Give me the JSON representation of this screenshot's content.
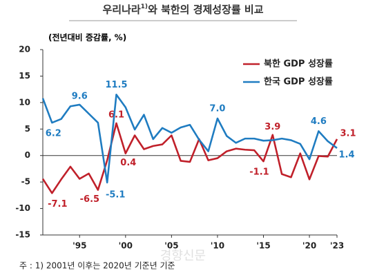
{
  "chart_data": {
    "type": "line",
    "title": [
      "우리나라",
      "1)",
      "와 북한의 경제성장률 비교"
    ],
    "y_label": "(전년대비 증감률, %)",
    "footnote": "주 : 1) 2001년 이후는 2020년 기준년 기준",
    "watermark": "경향신문",
    "legend": "upper right",
    "x": [
      1991,
      1992,
      1993,
      1994,
      1995,
      1996,
      1997,
      1998,
      1999,
      2000,
      2001,
      2002,
      2003,
      2004,
      2005,
      2006,
      2007,
      2008,
      2009,
      2010,
      2011,
      2012,
      2013,
      2014,
      2015,
      2016,
      2017,
      2018,
      2019,
      2020,
      2021,
      2022,
      2023
    ],
    "xlim": [
      1991,
      2023
    ],
    "xticks": [
      {
        "value": 1995,
        "label": "'95"
      },
      {
        "value": 2000,
        "label": "'00"
      },
      {
        "value": 2005,
        "label": "'05"
      },
      {
        "value": 2010,
        "label": "'10"
      },
      {
        "value": 2015,
        "label": "'15"
      },
      {
        "value": 2020,
        "label": "'20"
      },
      {
        "value": 2023,
        "label": "'23"
      }
    ],
    "ylim": [
      -15,
      20
    ],
    "yticks": [
      -15,
      -10,
      -5,
      0,
      5,
      10,
      15,
      20
    ],
    "series": [
      {
        "name": "북한 GDP 성장률",
        "color": "#c0202a",
        "values": [
          -4.4,
          -7.1,
          -4.5,
          -2.1,
          -4.4,
          -3.4,
          -6.5,
          -0.9,
          6.1,
          0.4,
          3.8,
          1.2,
          1.8,
          2.1,
          3.8,
          -1.0,
          -1.2,
          3.1,
          -0.9,
          -0.5,
          0.8,
          1.3,
          1.1,
          1.0,
          -1.1,
          3.9,
          -3.5,
          -4.1,
          0.4,
          -4.5,
          -0.1,
          -0.2,
          3.1
        ],
        "value_labels": [
          null,
          "-7.1",
          null,
          null,
          null,
          null,
          "-6.5",
          null,
          "6.1",
          "0.4",
          null,
          null,
          null,
          null,
          null,
          null,
          null,
          null,
          null,
          null,
          null,
          null,
          null,
          null,
          "-1.1",
          "3.9",
          null,
          null,
          null,
          null,
          null,
          null,
          "3.1"
        ]
      },
      {
        "name": "한국 GDP 성장률",
        "color": "#1f7cc1",
        "values": [
          10.8,
          6.2,
          6.9,
          9.3,
          9.6,
          7.9,
          6.2,
          -5.1,
          11.5,
          9.1,
          4.9,
          7.7,
          3.1,
          5.2,
          4.3,
          5.3,
          5.8,
          3.0,
          0.8,
          7.0,
          3.7,
          2.4,
          3.2,
          3.2,
          2.8,
          2.9,
          3.2,
          2.9,
          2.2,
          -0.7,
          4.6,
          2.7,
          1.4
        ],
        "value_labels": [
          null,
          "6.2",
          null,
          null,
          "9.6",
          null,
          null,
          "-5.1",
          "11.5",
          null,
          null,
          null,
          null,
          null,
          null,
          null,
          null,
          null,
          null,
          "7.0",
          null,
          null,
          null,
          null,
          null,
          null,
          null,
          null,
          null,
          null,
          "4.6",
          null,
          "1.4"
        ]
      }
    ]
  }
}
